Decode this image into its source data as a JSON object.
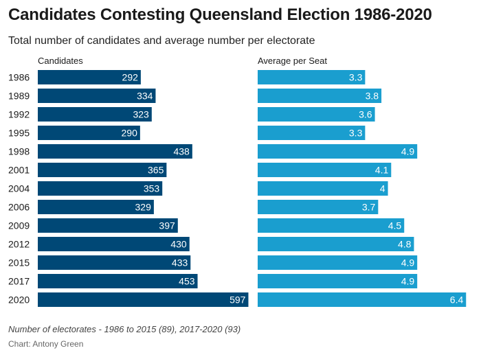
{
  "colors": {
    "candidates_bar": "#004876",
    "average_bar": "#1a9ecf",
    "value_text": "#ffffff"
  },
  "chart_data": {
    "type": "bar",
    "orientation": "horizontal",
    "title": "Candidates Contesting Queensland Election 1986-2020",
    "subtitle": "Total number of candidates and average number per electorate",
    "categories": [
      "1986",
      "1989",
      "1992",
      "1995",
      "1998",
      "2001",
      "2004",
      "2006",
      "2009",
      "2012",
      "2015",
      "2017",
      "2020"
    ],
    "series": [
      {
        "name": "Candidates",
        "values": [
          292,
          334,
          323,
          290,
          438,
          365,
          353,
          329,
          397,
          430,
          433,
          453,
          597
        ],
        "xlim": [
          0,
          600
        ]
      },
      {
        "name": "Average per Seat",
        "values": [
          "3.3",
          "3.8",
          "3.6",
          "3.3",
          "4.9",
          "4.1",
          "4",
          "3.7",
          "4.5",
          "4.8",
          "4.9",
          "4.9",
          "6.4"
        ],
        "xlim": [
          0,
          6.5
        ]
      }
    ],
    "note": "Number of electorates - 1986 to 2015 (89), 2017-2020 (93)",
    "credit": "Chart: Antony Green"
  }
}
